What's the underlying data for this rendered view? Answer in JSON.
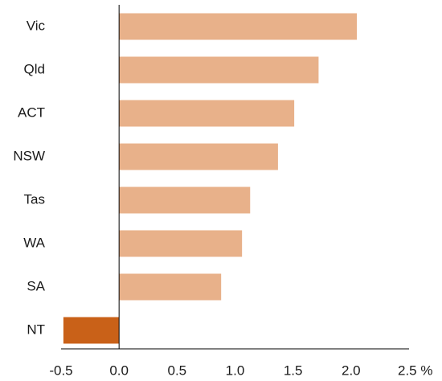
{
  "chart_data": {
    "type": "bar",
    "orientation": "horizontal",
    "categories": [
      "Vic",
      "Qld",
      "ACT",
      "NSW",
      "Tas",
      "WA",
      "SA",
      "NT"
    ],
    "values": [
      2.05,
      1.72,
      1.51,
      1.37,
      1.13,
      1.06,
      0.88,
      -0.48
    ],
    "xlim": [
      -0.5,
      2.5
    ],
    "xticks": [
      "-0.5",
      "0.0",
      "0.5",
      "1.0",
      "1.5",
      "2.0",
      "2.5 %"
    ],
    "xlabel": "",
    "ylabel": "",
    "title": "",
    "grid": false,
    "colors": {
      "positive": "#E8B18A",
      "negative": "#C96118"
    }
  }
}
